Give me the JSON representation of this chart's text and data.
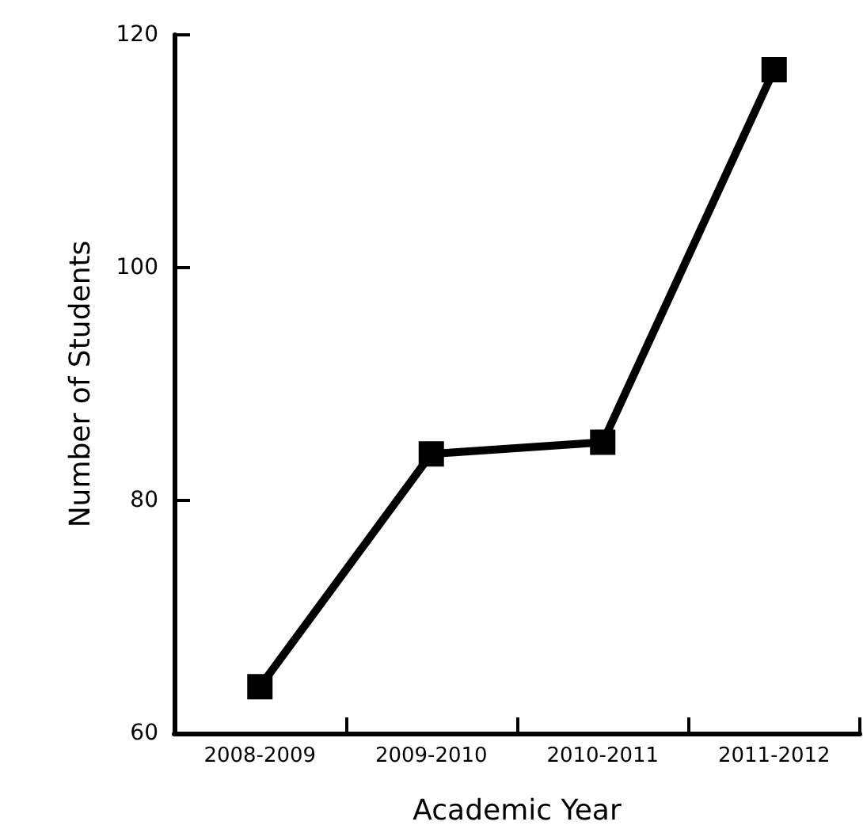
{
  "chart_data": {
    "type": "line",
    "xlabel": "Academic Year",
    "ylabel": "Number of Students",
    "categories": [
      "2008-2009",
      "2009-2010",
      "2010-2011",
      "2011-2012"
    ],
    "series": [
      {
        "color": "#000000",
        "values": [
          64,
          84,
          85,
          117
        ]
      }
    ],
    "ylim": [
      60,
      120
    ],
    "yticks": [
      60,
      80,
      100,
      120
    ],
    "grid": false,
    "marker": "square",
    "line_style": "solid"
  }
}
